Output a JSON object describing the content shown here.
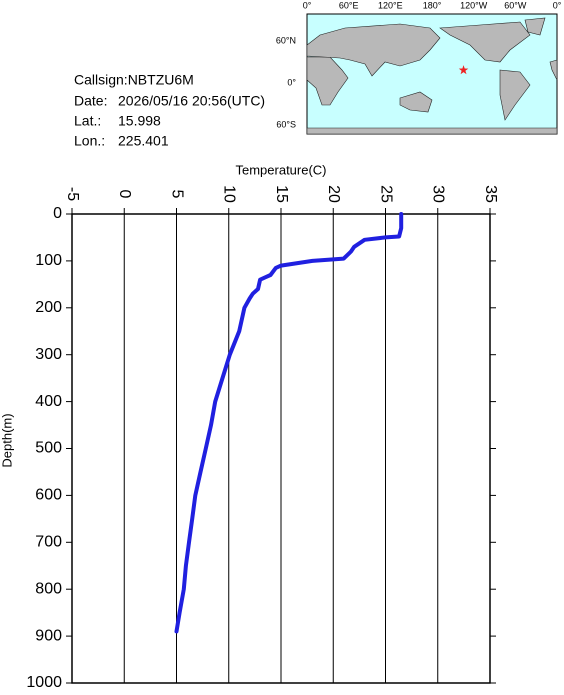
{
  "chart_data": {
    "type": "line",
    "x_label": "Temperature(C)",
    "y_label": "Depth(m)",
    "x": [
      26.5,
      26.5,
      26.5,
      26.3,
      25,
      23,
      22,
      21.7,
      21,
      18,
      15,
      14.5,
      14,
      13.5,
      13,
      12.8,
      12.3,
      12,
      11.5,
      11,
      10.1,
      9.4,
      8.7,
      8.3,
      7.8,
      7.3,
      6.8,
      6.5,
      6.2,
      5.9,
      5.7,
      5.3,
      5.0
    ],
    "values": [
      0,
      10,
      30,
      48,
      50,
      55,
      70,
      80,
      95,
      100,
      110,
      115,
      130,
      135,
      140,
      160,
      170,
      180,
      200,
      250,
      300,
      350,
      400,
      450,
      500,
      550,
      600,
      650,
      700,
      750,
      800,
      850,
      890
    ],
    "color": "#2020e0",
    "xlim": [
      -5,
      35
    ],
    "xticks": [
      -5,
      0,
      5,
      10,
      15,
      20,
      25,
      30,
      35
    ],
    "ylim": [
      0,
      1000
    ],
    "yticks": [
      0,
      100,
      200,
      300,
      400,
      500,
      600,
      700,
      800,
      900,
      1000
    ],
    "y_inverted": true,
    "grid": true
  },
  "info": {
    "callsign": "Callsign:NBTZU6M",
    "date_label": "Date:",
    "date": "2026/05/16 20:56(UTC)",
    "lat_label": "Lat.:",
    "lat": 15.998,
    "lon_label": "Lon.:",
    "lon": 225.401
  },
  "map": {
    "lon_labels": [
      "0°",
      "60°E",
      "120°E",
      "180°",
      "120°W",
      "60°W",
      "0°"
    ],
    "lat_labels": [
      "60°N",
      "0°",
      "60°S"
    ],
    "marker_color": "#ee2222"
  }
}
